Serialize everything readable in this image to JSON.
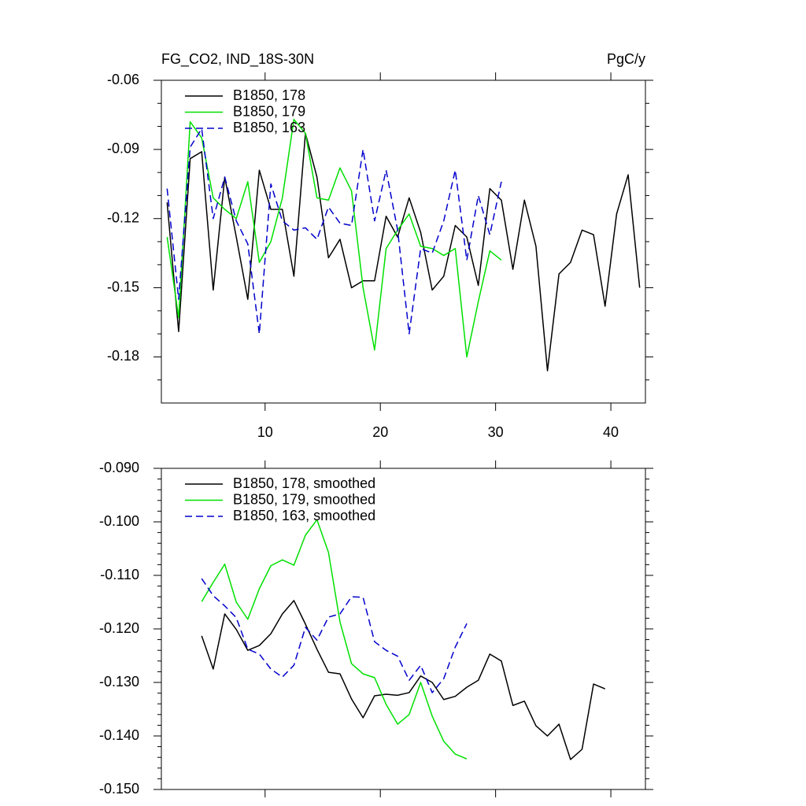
{
  "chart_data": [
    {
      "type": "line",
      "title": "FG_CO2, IND_18S-30N",
      "right_title": "PgC/y",
      "x": [
        1.5,
        2.5,
        3.5,
        4.5,
        5.5,
        6.5,
        7.5,
        8.5,
        9.5,
        10.5,
        11.5,
        12.5,
        13.5,
        14.5,
        15.5,
        16.5,
        17.5,
        18.5,
        19.5,
        20.5,
        21.5,
        22.5,
        23.5,
        24.5,
        25.5,
        26.5,
        27.5,
        28.5,
        29.5,
        30.5,
        31.5,
        32.5,
        33.5,
        34.5,
        35.5,
        36.5,
        37.5,
        38.5,
        39.5,
        40.5,
        41.5,
        42.5
      ],
      "series": [
        {
          "name": "B1850, 178",
          "color": "#000000",
          "dash": false,
          "values": [
            -0.113,
            -0.169,
            -0.094,
            -0.091,
            -0.151,
            -0.102,
            -0.128,
            -0.155,
            -0.099,
            -0.116,
            -0.116,
            -0.145,
            -0.083,
            -0.102,
            -0.137,
            -0.129,
            -0.15,
            -0.147,
            -0.147,
            -0.119,
            -0.128,
            -0.111,
            -0.126,
            -0.151,
            -0.145,
            -0.123,
            -0.128,
            -0.149,
            -0.107,
            -0.112,
            -0.142,
            -0.112,
            -0.132,
            -0.186,
            -0.144,
            -0.139,
            -0.125,
            -0.127,
            -0.158,
            -0.118,
            -0.101,
            -0.15
          ]
        },
        {
          "name": "B1850, 179",
          "color": "#00e000",
          "dash": false,
          "values": [
            -0.128,
            -0.163,
            -0.078,
            -0.085,
            -0.111,
            -0.116,
            -0.12,
            -0.104,
            -0.139,
            -0.13,
            -0.111,
            -0.077,
            -0.083,
            -0.111,
            -0.112,
            -0.098,
            -0.108,
            -0.15,
            -0.177,
            -0.133,
            -0.125,
            -0.118,
            -0.132,
            -0.133,
            -0.136,
            -0.133,
            -0.18,
            -0.156,
            -0.134,
            -0.138,
            null,
            null,
            null,
            null,
            null,
            null,
            null,
            null,
            null,
            null,
            null,
            null
          ]
        },
        {
          "name": "B1850, 163",
          "color": "#0000cc",
          "dash": true,
          "values": [
            -0.107,
            -0.155,
            -0.089,
            -0.081,
            -0.12,
            -0.102,
            -0.121,
            -0.131,
            -0.17,
            -0.105,
            -0.121,
            -0.125,
            -0.124,
            -0.129,
            -0.115,
            -0.122,
            -0.123,
            -0.09,
            -0.121,
            -0.099,
            -0.125,
            -0.17,
            -0.133,
            -0.135,
            -0.121,
            -0.099,
            -0.138,
            -0.11,
            -0.127,
            -0.104,
            null,
            null,
            null,
            null,
            null,
            null,
            null,
            null,
            null,
            null,
            null,
            null
          ]
        }
      ],
      "xlim": [
        1,
        43
      ],
      "xticks": [
        10,
        20,
        30,
        40
      ],
      "xtick_labels": true,
      "ylim": [
        -0.2,
        -0.06
      ],
      "yticks": [
        -0.06,
        -0.09,
        -0.12,
        -0.15,
        -0.18
      ],
      "yminor": [
        -0.07,
        -0.08,
        -0.1,
        -0.11,
        -0.13,
        -0.14,
        -0.16,
        -0.17,
        -0.19
      ],
      "legend": "upper left"
    },
    {
      "type": "line",
      "x": [
        4.5,
        5.5,
        6.5,
        7.5,
        8.5,
        9.5,
        10.5,
        11.5,
        12.5,
        13.5,
        14.5,
        15.5,
        16.5,
        17.5,
        18.5,
        19.5,
        20.5,
        21.5,
        22.5,
        23.5,
        24.5,
        25.5,
        26.5,
        27.5,
        28.5,
        29.5,
        30.5,
        31.5,
        32.5,
        33.5,
        34.5,
        35.5,
        36.5,
        37.5,
        38.5,
        39.5
      ],
      "series": [
        {
          "name": "B1850, 178, smoothed",
          "color": "#000000",
          "dash": false,
          "values": [
            -0.1213,
            -0.1275,
            -0.1172,
            -0.1201,
            -0.124,
            -0.1231,
            -0.1209,
            -0.1172,
            -0.1147,
            -0.1191,
            -0.1238,
            -0.1281,
            -0.1284,
            -0.1331,
            -0.1366,
            -0.1325,
            -0.1322,
            -0.1324,
            -0.1319,
            -0.1288,
            -0.13,
            -0.1332,
            -0.1326,
            -0.1309,
            -0.1296,
            -0.1247,
            -0.126,
            -0.1343,
            -0.1335,
            -0.1381,
            -0.14,
            -0.1378,
            -0.1444,
            -0.1425,
            -0.1303,
            -0.1312
          ]
        },
        {
          "name": "B1850, 179, smoothed",
          "color": "#00e000",
          "dash": false,
          "values": [
            -0.1149,
            -0.1113,
            -0.1079,
            -0.115,
            -0.1182,
            -0.1125,
            -0.1082,
            -0.1071,
            -0.1081,
            -0.1025,
            -0.0996,
            -0.1057,
            -0.1187,
            -0.1265,
            -0.1284,
            -0.1291,
            -0.1341,
            -0.1378,
            -0.136,
            -0.13,
            -0.1363,
            -0.141,
            -0.1434,
            -0.1443,
            null,
            null,
            null,
            null,
            null,
            null,
            null,
            null,
            null,
            null,
            null,
            null
          ]
        },
        {
          "name": "B1850, 163, smoothed",
          "color": "#0000cc",
          "dash": true,
          "values": [
            -0.1106,
            -0.1138,
            -0.1157,
            -0.1179,
            -0.1238,
            -0.1247,
            -0.1275,
            -0.129,
            -0.1268,
            -0.1197,
            -0.1221,
            -0.1178,
            -0.1172,
            -0.114,
            -0.1141,
            -0.1224,
            -0.124,
            -0.1251,
            -0.1296,
            -0.1268,
            -0.1319,
            -0.1293,
            -0.1234,
            -0.119,
            null,
            null,
            null,
            null,
            null,
            null,
            null,
            null,
            null,
            null,
            null,
            null
          ]
        }
      ],
      "xlim": [
        1,
        43
      ],
      "xticks": [
        10,
        20,
        30,
        40
      ],
      "xtick_labels": false,
      "ylim": [
        -0.15,
        -0.09
      ],
      "yticks": [
        {
          "value": -0.09,
          "label": "-0.090"
        },
        {
          "value": -0.1,
          "label": "-0.100"
        },
        {
          "value": -0.11,
          "label": "-0.110"
        },
        {
          "value": -0.12,
          "label": "-0.120"
        },
        {
          "value": -0.13,
          "label": "-0.130"
        },
        {
          "value": -0.14,
          "label": "-0.140"
        },
        {
          "value": -0.15,
          "label": "-0.150"
        }
      ],
      "yminor": [
        -0.092,
        -0.094,
        -0.096,
        -0.098,
        -0.102,
        -0.104,
        -0.106,
        -0.108,
        -0.112,
        -0.114,
        -0.116,
        -0.118,
        -0.122,
        -0.124,
        -0.126,
        -0.128,
        -0.132,
        -0.134,
        -0.136,
        -0.138,
        -0.142,
        -0.144,
        -0.146,
        -0.148
      ],
      "legend": "upper left"
    }
  ]
}
